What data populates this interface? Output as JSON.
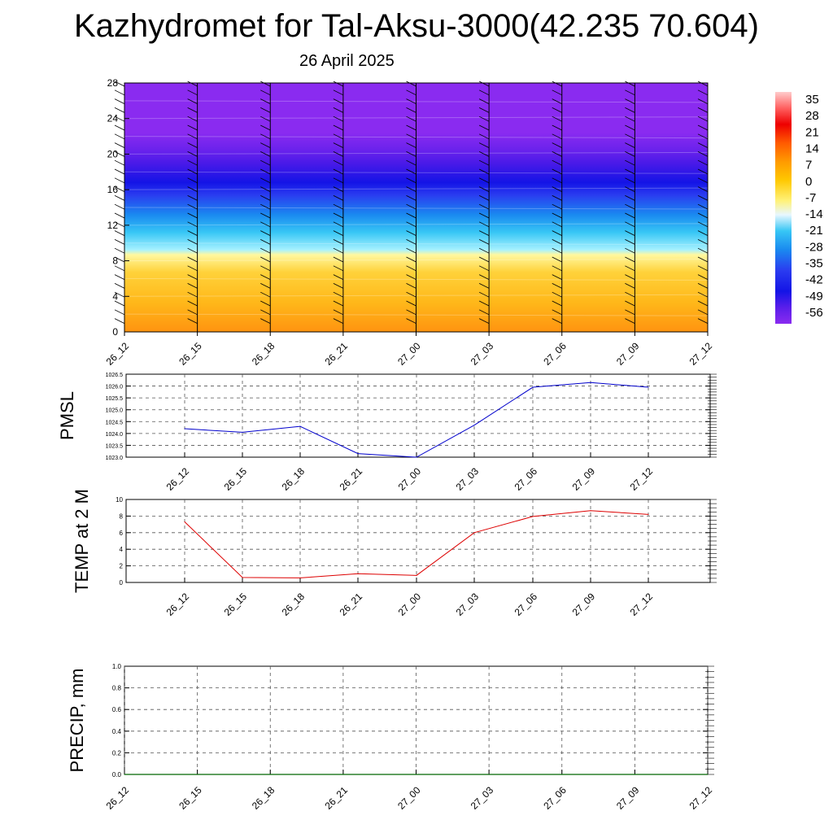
{
  "header": {
    "title": "Kazhydromet for Tal-Aksu-3000(42.235 70.604)",
    "subtitle": "26 April 2025"
  },
  "chart_data": [
    {
      "type": "heatmap",
      "name": "cross-section",
      "x_tick_labels": [
        "26_12",
        "26_15",
        "26_18",
        "26_21",
        "27_00",
        "27_03",
        "27_06",
        "27_09",
        "27_12"
      ],
      "y_tick_labels": [
        "0",
        "4",
        "8",
        "12",
        "16",
        "20",
        "24",
        "28"
      ],
      "ylim": [
        0,
        28
      ],
      "colorbar_labels": [
        "35",
        "28",
        "21",
        "14",
        "7",
        "0",
        "-7",
        "-14",
        "-21",
        "-28",
        "-35",
        "-42",
        "-49",
        "-56"
      ],
      "color_stops": [
        "#fff8a0",
        "#ffd23a",
        "#ffb81a",
        "#ff9410"
      ],
      "upper_colors": [
        "#a6f1ff",
        "#37c6f5",
        "#1a8af0",
        "#2a3cf0",
        "#1414e6",
        "#4b1ae8",
        "#6a22ec",
        "#8a2bf0"
      ],
      "wind_barbs": true
    },
    {
      "type": "line",
      "ylabel": "PMSL",
      "x": [
        "26_12",
        "26_15",
        "26_18",
        "26_21",
        "27_00",
        "27_03",
        "27_06",
        "27_09",
        "27_12"
      ],
      "values": [
        1024.2,
        1024.05,
        1024.3,
        1023.15,
        1023.0,
        1024.35,
        1025.95,
        1026.15,
        1025.95
      ],
      "ylim": [
        1023.0,
        1026.5
      ],
      "y_tick_labels": [
        "1023.0",
        "1023.5",
        "1024.0",
        "1024.5",
        "1025.0",
        "1025.5",
        "1026.0",
        "1026.5"
      ],
      "color": "#0000cc",
      "grid": true
    },
    {
      "type": "line",
      "ylabel": "TEMP at 2 M",
      "x": [
        "26_12",
        "26_15",
        "26_18",
        "26_21",
        "27_00",
        "27_03",
        "27_06",
        "27_09",
        "27_12"
      ],
      "values": [
        7.3,
        0.6,
        0.55,
        1.05,
        0.85,
        6.0,
        7.95,
        8.65,
        8.2
      ],
      "ylim": [
        0,
        10
      ],
      "y_tick_labels": [
        "0",
        "2",
        "4",
        "6",
        "8",
        "10"
      ],
      "color": "#dd0000",
      "grid": true
    },
    {
      "type": "line",
      "ylabel": "PRECIP, mm",
      "x": [
        "26_12",
        "26_15",
        "26_18",
        "26_21",
        "27_00",
        "27_03",
        "27_06",
        "27_09",
        "27_12"
      ],
      "values": [
        0,
        0,
        0,
        0,
        0,
        0,
        0,
        0,
        0
      ],
      "ylim": [
        0,
        1.0
      ],
      "y_tick_labels": [
        "0.0",
        "0.2",
        "0.4",
        "0.6",
        "0.8",
        "1.0"
      ],
      "color": "#006600",
      "grid": true
    }
  ]
}
